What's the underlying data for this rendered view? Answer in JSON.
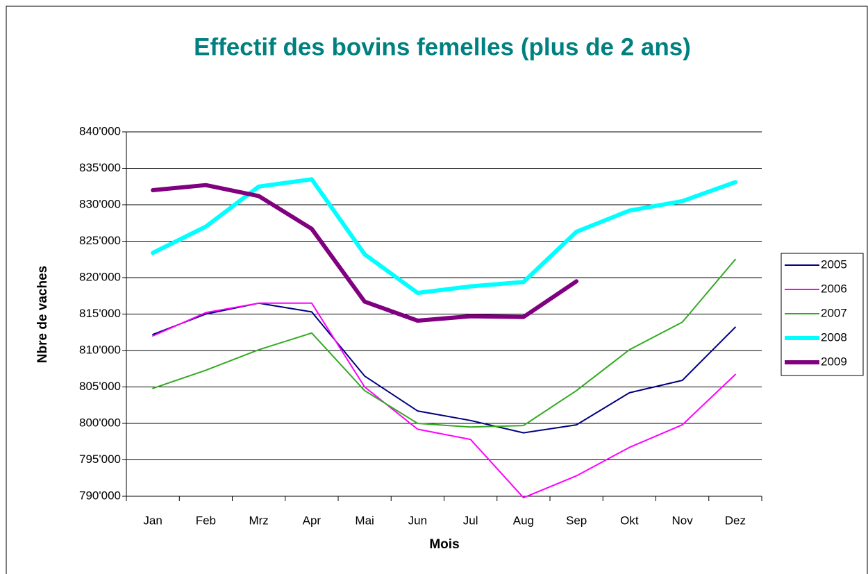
{
  "chart_data": {
    "type": "line",
    "title": "Effectif des bovins femelles (plus de 2 ans)",
    "xlabel": "Mois",
    "ylabel": "Nbre de vaches",
    "categories": [
      "Jan",
      "Feb",
      "Mrz",
      "Apr",
      "Mai",
      "Jun",
      "Jul",
      "Aug",
      "Sep",
      "Okt",
      "Nov",
      "Dez"
    ],
    "series": [
      {
        "name": "2005",
        "color": "#000080",
        "line_width": 2,
        "values": [
          812200,
          815000,
          816500,
          815300,
          806500,
          801700,
          800400,
          798700,
          799800,
          804200,
          805900,
          813200
        ]
      },
      {
        "name": "2006",
        "color": "#ff00ff",
        "line_width": 2,
        "values": [
          812000,
          815200,
          816500,
          816500,
          805000,
          799200,
          797800,
          789800,
          792800,
          796700,
          799800,
          806700
        ]
      },
      {
        "name": "2007",
        "color": "#33aa22",
        "line_width": 2,
        "values": [
          804800,
          807300,
          810100,
          812400,
          804500,
          800000,
          799500,
          799700,
          804500,
          810100,
          813900,
          822500
        ]
      },
      {
        "name": "2008",
        "color": "#00ffff",
        "line_width": 6,
        "values": [
          823400,
          827000,
          832500,
          833500,
          823200,
          817900,
          818800,
          819400,
          826300,
          829200,
          830500,
          833100
        ]
      },
      {
        "name": "2009",
        "color": "#800080",
        "line_width": 6,
        "values": [
          832000,
          832700,
          831200,
          826700,
          816700,
          814100,
          814700,
          814600,
          819500,
          null,
          null,
          null
        ]
      }
    ],
    "ylim": [
      790000,
      840000
    ],
    "yticks": [
      {
        "value": 790000,
        "label": "790'000"
      },
      {
        "value": 795000,
        "label": "795'000"
      },
      {
        "value": 800000,
        "label": "800'000"
      },
      {
        "value": 805000,
        "label": "805'000"
      },
      {
        "value": 810000,
        "label": "810'000"
      },
      {
        "value": 815000,
        "label": "815'000"
      },
      {
        "value": 820000,
        "label": "820'000"
      },
      {
        "value": 825000,
        "label": "825'000"
      },
      {
        "value": 830000,
        "label": "830'000"
      },
      {
        "value": 835000,
        "label": "835'000"
      },
      {
        "value": 840000,
        "label": "840'000"
      }
    ],
    "grid": true,
    "legend": "right"
  }
}
